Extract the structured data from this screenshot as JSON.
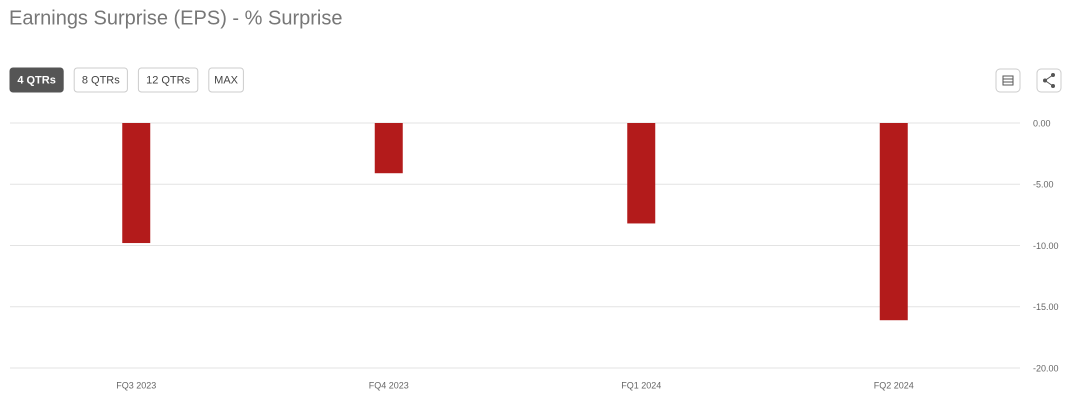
{
  "chart_data": {
    "type": "bar",
    "title": "Earnings Surprise (EPS) - % Surprise",
    "range_buttons": [
      "4 QTRs",
      "8 QTRs",
      "12 QTRs",
      "MAX"
    ],
    "selected_range": 0,
    "categories": [
      "FQ3 2023",
      "FQ4 2023",
      "FQ1 2024",
      "FQ2 2024"
    ],
    "values": [
      -9.8,
      -4.1,
      -8.2,
      -16.1
    ],
    "color": "#b31b1b",
    "ylim": [
      -20,
      0
    ],
    "yticks": [
      {
        "value": 0,
        "label": "0.00"
      },
      {
        "value": -5,
        "label": "-5.00"
      },
      {
        "value": -10,
        "label": "-10.00"
      },
      {
        "value": -15,
        "label": "-15.00"
      },
      {
        "value": -20,
        "label": "-20.00"
      }
    ],
    "grid": true
  }
}
